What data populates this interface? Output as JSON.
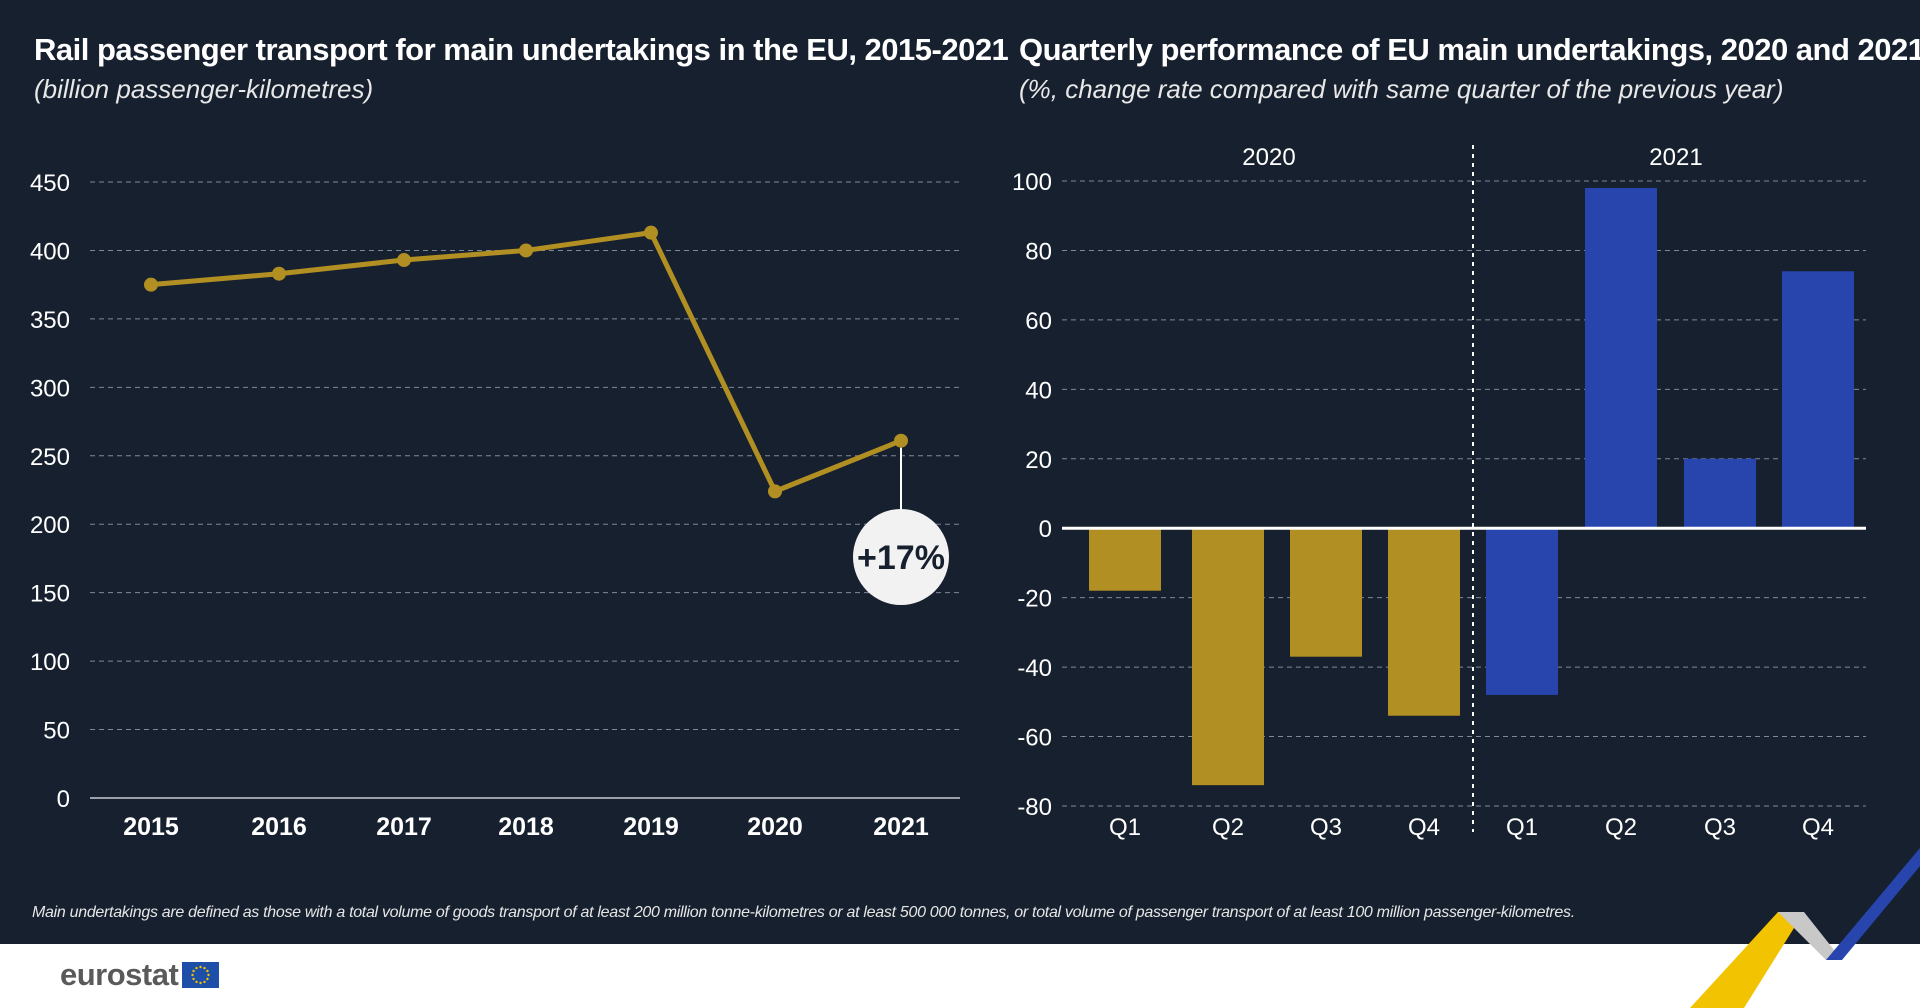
{
  "colors": {
    "background": "#17202e",
    "gold": "#b18f22",
    "blue": "#2745ad",
    "grid": "#7f8896",
    "text": "#ffffff"
  },
  "left": {
    "title": "Rail passenger transport for main undertakings in the EU, 2015-2021",
    "subtitle": "(billion passenger-kilometres)",
    "callout": "+17%"
  },
  "right": {
    "title": "Quarterly performance of EU main undertakings, 2020 and 2021",
    "subtitle": "(%, change rate compared with same quarter of the previous year)",
    "group_labels": [
      "2020",
      "2021"
    ]
  },
  "chart_data": [
    {
      "type": "line",
      "title": "Rail passenger transport for main undertakings in the EU, 2015-2021",
      "subtitle": "(billion passenger-kilometres)",
      "x": [
        "2015",
        "2016",
        "2017",
        "2018",
        "2019",
        "2020",
        "2021"
      ],
      "series": [
        {
          "values": [
            375,
            383,
            393,
            400,
            413,
            224,
            261
          ],
          "color": "#b18f22"
        }
      ],
      "ylim": [
        0,
        450
      ],
      "yticks": [
        0,
        50,
        100,
        150,
        200,
        250,
        300,
        350,
        400,
        450
      ],
      "grid": true,
      "annotations": [
        {
          "x": "2021",
          "text": "+17%"
        }
      ]
    },
    {
      "type": "bar",
      "title": "Quarterly performance of EU main undertakings, 2020 and 2021",
      "subtitle": "(%, change rate compared with same quarter of the previous year)",
      "categories": [
        "Q1",
        "Q2",
        "Q3",
        "Q4",
        "Q1",
        "Q2",
        "Q3",
        "Q4"
      ],
      "groups": [
        {
          "label": "2020",
          "color": "#b18f22"
        },
        {
          "label": "2021",
          "color": "#2745ad"
        }
      ],
      "values": [
        -18,
        -74,
        -37,
        -54,
        -48,
        98,
        20,
        74
      ],
      "ylim": [
        -80,
        100
      ],
      "yticks": [
        -80,
        -60,
        -40,
        -20,
        0,
        20,
        40,
        60,
        80,
        100
      ],
      "grid": true
    }
  ],
  "footnote": "Main undertakings are defined as those with a total volume of goods transport of at least 200 million tonne-kilometres or at least 500 000 tonnes, or total volume of passenger transport of at least 100 million passenger-kilometres.",
  "footer": {
    "logo_text": "eurostat",
    "flag_icon": "eu-flag-icon"
  }
}
